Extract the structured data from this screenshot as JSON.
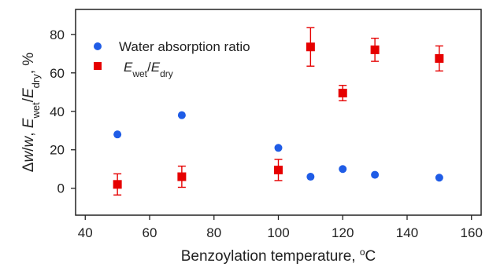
{
  "chart_data": {
    "type": "scatter",
    "title": "",
    "xlabel": "Benzoylation temperature, °C",
    "xlabel_parts": {
      "text": "Benzoylation temperature, ",
      "sup": "o",
      "unit": "C"
    },
    "ylabel": "Δw/w, E_wet/E_dry, %",
    "ylabel_parts": {
      "a": "Δ",
      "w1": "w",
      "slash": "/",
      "w2": "w",
      "sep": ", ",
      "E1": "E",
      "sub1": "wet",
      "E2": "E",
      "sub2": "dry",
      "end": ", %"
    },
    "xlim": [
      37,
      163
    ],
    "ylim": [
      -14,
      93
    ],
    "xticks": [
      40,
      60,
      80,
      100,
      120,
      140,
      160
    ],
    "yticks": [
      0,
      20,
      40,
      60,
      80
    ],
    "grid": false,
    "legend_position": "top-left",
    "series": [
      {
        "name": "Water absorption ratio",
        "marker": "circle",
        "color": "#1f5ce6",
        "x": [
          50,
          70,
          100,
          110,
          120,
          130,
          150
        ],
        "y": [
          28,
          38,
          21,
          6,
          10,
          7,
          5.5
        ]
      },
      {
        "name_parts": {
          "E1": "E",
          "sub1": "wet",
          "slash": "/",
          "E2": "E",
          "sub2": "dry"
        },
        "marker": "square",
        "color": "#e60000",
        "x": [
          50,
          70,
          100,
          110,
          120,
          130,
          150
        ],
        "y": [
          2,
          6,
          9.5,
          73.5,
          49.5,
          72,
          67.5
        ],
        "yerr": [
          5.5,
          5.5,
          5.5,
          10,
          4,
          6,
          6.5
        ]
      }
    ]
  }
}
